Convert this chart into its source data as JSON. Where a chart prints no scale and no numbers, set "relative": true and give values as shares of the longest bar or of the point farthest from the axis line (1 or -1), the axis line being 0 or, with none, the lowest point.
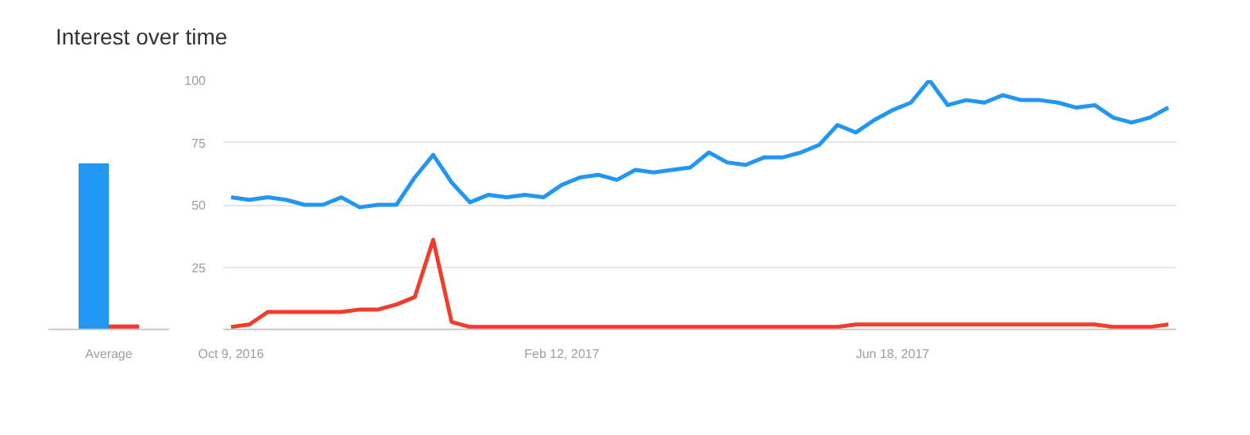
{
  "chart_data": [
    {
      "type": "bar",
      "title": "Interest over time",
      "categories": [
        "Average"
      ],
      "relative": true,
      "series": [
        {
          "color": "#2196f3",
          "values": [
            1
          ]
        },
        {
          "color": "#f23d2c",
          "values": [
            0.03
          ]
        }
      ]
    },
    {
      "type": "line",
      "grid": "y",
      "xlim": [
        "2016-10-06",
        "2017-10-04"
      ],
      "ylim": [
        0,
        100
      ],
      "xticks": [
        {
          "value": "2016-10-09",
          "label": "Oct 9, 2016"
        },
        {
          "value": "2017-02-12",
          "label": "Feb 12, 2017"
        },
        {
          "value": "2017-06-18",
          "label": "Jun 18, 2017"
        }
      ],
      "yticks": [
        {
          "value": 0,
          "label": null
        },
        25,
        50,
        75,
        100
      ],
      "x": [
        "2016-10-09",
        "2016-10-16",
        "2016-10-23",
        "2016-10-30",
        "2016-11-06",
        "2016-11-13",
        "2016-11-20",
        "2016-11-27",
        "2016-12-04",
        "2016-12-11",
        "2016-12-18",
        "2016-12-25",
        "2017-01-01",
        "2017-01-08",
        "2017-01-15",
        "2017-01-22",
        "2017-01-29",
        "2017-02-05",
        "2017-02-12",
        "2017-02-19",
        "2017-02-26",
        "2017-03-05",
        "2017-03-12",
        "2017-03-19",
        "2017-03-26",
        "2017-04-02",
        "2017-04-09",
        "2017-04-16",
        "2017-04-23",
        "2017-04-30",
        "2017-05-07",
        "2017-05-14",
        "2017-05-21",
        "2017-05-28",
        "2017-06-04",
        "2017-06-11",
        "2017-06-18",
        "2017-06-25",
        "2017-07-02",
        "2017-07-09",
        "2017-07-16",
        "2017-07-23",
        "2017-07-30",
        "2017-08-06",
        "2017-08-13",
        "2017-08-20",
        "2017-08-27",
        "2017-09-03",
        "2017-09-10",
        "2017-09-17",
        "2017-09-24",
        "2017-10-01"
      ],
      "series": [
        {
          "color": "#2196f3",
          "values": [
            53,
            52,
            53,
            52,
            50,
            50,
            53,
            49,
            50,
            50,
            61,
            70,
            59,
            51,
            54,
            53,
            54,
            53,
            58,
            61,
            62,
            60,
            64,
            63,
            64,
            65,
            71,
            67,
            66,
            69,
            69,
            71,
            74,
            82,
            79,
            84,
            88,
            91,
            100,
            90,
            92,
            91,
            94,
            92,
            92,
            91,
            89,
            90,
            85,
            83,
            85,
            89
          ]
        },
        {
          "color": "#f23d2c",
          "values": [
            1,
            2,
            7,
            7,
            7,
            7,
            7,
            8,
            8,
            10,
            13,
            36,
            3,
            1,
            1,
            1,
            1,
            1,
            1,
            1,
            1,
            1,
            1,
            1,
            1,
            1,
            1,
            1,
            1,
            1,
            1,
            1,
            1,
            1,
            2,
            2,
            2,
            2,
            2,
            2,
            2,
            2,
            2,
            2,
            2,
            2,
            2,
            2,
            1,
            1,
            1,
            2
          ]
        }
      ]
    }
  ]
}
